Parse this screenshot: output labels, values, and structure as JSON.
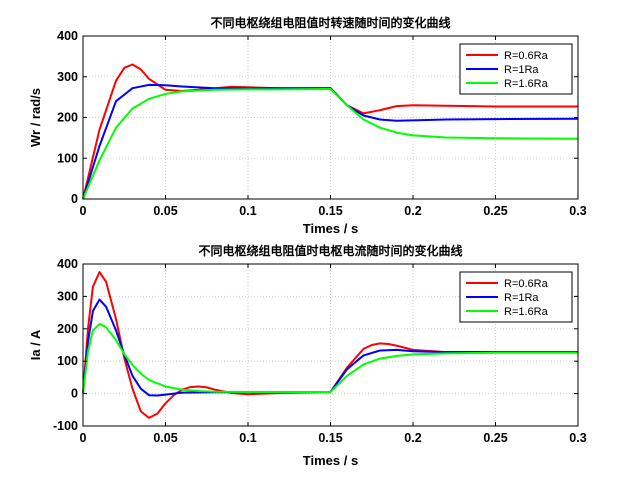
{
  "chart_data": [
    {
      "type": "line",
      "title": "不同电枢绕组电阻值时转速随时间的变化曲线",
      "xlabel": "Times / s",
      "ylabel": "Wr / rad/s",
      "xlim": [
        0,
        0.3
      ],
      "ylim": [
        0,
        400
      ],
      "xticks": [
        0,
        0.05,
        0.1,
        0.15,
        0.2,
        0.25,
        0.3
      ],
      "xtick_labels": [
        "0",
        "0.05",
        "0.1",
        "0.15",
        "0.2",
        "0.25",
        "0.3"
      ],
      "yticks": [
        0,
        100,
        200,
        300,
        400
      ],
      "ytick_labels": [
        "0",
        "100",
        "200",
        "300",
        "400"
      ],
      "grid": true,
      "legend_position": "top-right",
      "series": [
        {
          "name": "R=0.6Ra",
          "color": "#ff0000",
          "x": [
            0,
            0.01,
            0.02,
            0.025,
            0.03,
            0.035,
            0.04,
            0.05,
            0.06,
            0.07,
            0.08,
            0.09,
            0.1,
            0.12,
            0.15,
            0.16,
            0.17,
            0.18,
            0.19,
            0.2,
            0.22,
            0.25,
            0.3
          ],
          "values": [
            0,
            170,
            290,
            322,
            330,
            318,
            295,
            268,
            265,
            268,
            272,
            275,
            274,
            272,
            272,
            230,
            210,
            218,
            228,
            230,
            229,
            227,
            227
          ]
        },
        {
          "name": "R=1Ra",
          "color": "#0000ff",
          "x": [
            0,
            0.01,
            0.02,
            0.03,
            0.04,
            0.05,
            0.06,
            0.08,
            0.1,
            0.12,
            0.15,
            0.16,
            0.17,
            0.18,
            0.19,
            0.2,
            0.22,
            0.25,
            0.3
          ],
          "values": [
            0,
            130,
            240,
            272,
            280,
            279,
            276,
            272,
            271,
            272,
            272,
            230,
            205,
            195,
            192,
            193,
            195,
            196,
            197
          ]
        },
        {
          "name": "R=1.6Ra",
          "color": "#00ff00",
          "x": [
            0,
            0.01,
            0.02,
            0.03,
            0.04,
            0.05,
            0.06,
            0.08,
            0.1,
            0.12,
            0.15,
            0.16,
            0.17,
            0.18,
            0.19,
            0.2,
            0.22,
            0.25,
            0.3
          ],
          "values": [
            0,
            95,
            175,
            222,
            246,
            258,
            264,
            268,
            269,
            269,
            270,
            230,
            195,
            175,
            163,
            156,
            151,
            149,
            148
          ]
        }
      ]
    },
    {
      "type": "line",
      "title": "不同电枢绕组电阻值时电枢电流随时间的变化曲线",
      "xlabel": "Times / s",
      "ylabel": "Ia / A",
      "xlim": [
        0,
        0.3
      ],
      "ylim": [
        -100,
        400
      ],
      "xticks": [
        0,
        0.05,
        0.1,
        0.15,
        0.2,
        0.25,
        0.3
      ],
      "xtick_labels": [
        "0",
        "0.05",
        "0.1",
        "0.15",
        "0.2",
        "0.25",
        "0.3"
      ],
      "yticks": [
        -100,
        0,
        100,
        200,
        300,
        400
      ],
      "ytick_labels": [
        "-100",
        "0",
        "100",
        "200",
        "300",
        "400"
      ],
      "grid": true,
      "legend_position": "top-right",
      "series": [
        {
          "name": "R=0.6Ra",
          "color": "#ff0000",
          "x": [
            0,
            0.003,
            0.006,
            0.01,
            0.014,
            0.02,
            0.025,
            0.03,
            0.035,
            0.04,
            0.045,
            0.05,
            0.055,
            0.06,
            0.065,
            0.07,
            0.075,
            0.08,
            0.09,
            0.1,
            0.12,
            0.15,
            0.16,
            0.17,
            0.175,
            0.18,
            0.185,
            0.19,
            0.2,
            0.22,
            0.25,
            0.3
          ],
          "values": [
            0,
            200,
            330,
            375,
            345,
            230,
            110,
            15,
            -55,
            -75,
            -62,
            -30,
            -5,
            12,
            20,
            22,
            19,
            12,
            2,
            -2,
            2,
            5,
            80,
            138,
            150,
            155,
            153,
            148,
            135,
            128,
            128,
            128
          ]
        },
        {
          "name": "R=1Ra",
          "color": "#0000ff",
          "x": [
            0,
            0.003,
            0.006,
            0.01,
            0.014,
            0.02,
            0.025,
            0.03,
            0.035,
            0.04,
            0.045,
            0.05,
            0.06,
            0.08,
            0.1,
            0.15,
            0.16,
            0.17,
            0.18,
            0.19,
            0.2,
            0.22,
            0.25,
            0.3
          ],
          "values": [
            0,
            160,
            255,
            290,
            268,
            195,
            120,
            55,
            15,
            -5,
            -6,
            -3,
            3,
            4,
            4,
            5,
            75,
            118,
            133,
            135,
            131,
            128,
            128,
            128
          ]
        },
        {
          "name": "R=1.6Ra",
          "color": "#00ff00",
          "x": [
            0,
            0.003,
            0.006,
            0.01,
            0.014,
            0.02,
            0.025,
            0.03,
            0.035,
            0.04,
            0.05,
            0.06,
            0.07,
            0.08,
            0.1,
            0.12,
            0.15,
            0.16,
            0.17,
            0.18,
            0.19,
            0.2,
            0.22,
            0.25,
            0.3
          ],
          "values": [
            0,
            130,
            195,
            215,
            205,
            165,
            122,
            88,
            62,
            42,
            22,
            12,
            8,
            6,
            5,
            5,
            5,
            55,
            90,
            108,
            116,
            121,
            124,
            126,
            126
          ]
        }
      ]
    }
  ]
}
